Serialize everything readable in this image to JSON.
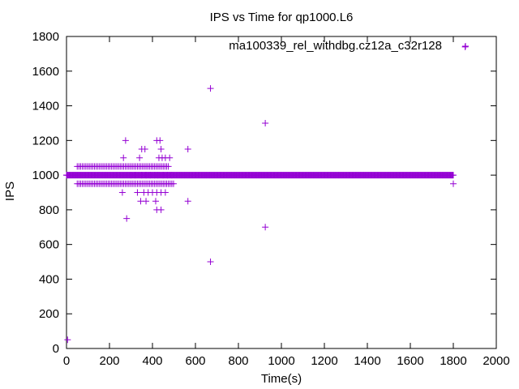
{
  "chart_data": {
    "type": "scatter",
    "title": "IPS vs Time for qp1000.L6",
    "xlabel": "Time(s)",
    "ylabel": "IPS",
    "xlim": [
      0,
      2000
    ],
    "ylim": [
      0,
      1800
    ],
    "xticks": [
      0,
      200,
      400,
      600,
      800,
      1000,
      1200,
      1400,
      1600,
      1800,
      2000
    ],
    "yticks": [
      0,
      200,
      400,
      600,
      800,
      1000,
      1200,
      1400,
      1600,
      1800
    ],
    "grid": false,
    "legend_position": "top-right",
    "marker": "+",
    "series": [
      {
        "name": "ma100339_rel_withdbg.cz12a_c32r128",
        "color": "#9400d3",
        "dense_band": {
          "y": 1000,
          "x_start": 0,
          "x_end": 1800,
          "step": 3
        },
        "band_low": {
          "y": 950,
          "x_start": 50,
          "x_end": 500,
          "step": 8
        },
        "band_high": {
          "y": 1050,
          "x_start": 50,
          "x_end": 480,
          "step": 8
        },
        "x": [
          0,
          1800,
          1855,
          670,
          925,
          275,
          350,
          365,
          420,
          435,
          440,
          565,
          265,
          340,
          430,
          445,
          460,
          480,
          260,
          330,
          360,
          380,
          400,
          420,
          440,
          460,
          300,
          320,
          350,
          370,
          390,
          410,
          425,
          450,
          470,
          490,
          370,
          415,
          345,
          440,
          565,
          420,
          280,
          670,
          925,
          5
        ],
        "y": [
          1000,
          950,
          1740,
          1500,
          1300,
          1200,
          1150,
          1150,
          1200,
          1200,
          1150,
          1150,
          1100,
          1100,
          1100,
          1100,
          1100,
          1100,
          900,
          900,
          900,
          900,
          900,
          900,
          900,
          900,
          1000,
          1000,
          1000,
          1000,
          1000,
          1000,
          1000,
          1000,
          1000,
          1000,
          850,
          850,
          850,
          800,
          850,
          800,
          750,
          500,
          700,
          50
        ]
      }
    ]
  }
}
